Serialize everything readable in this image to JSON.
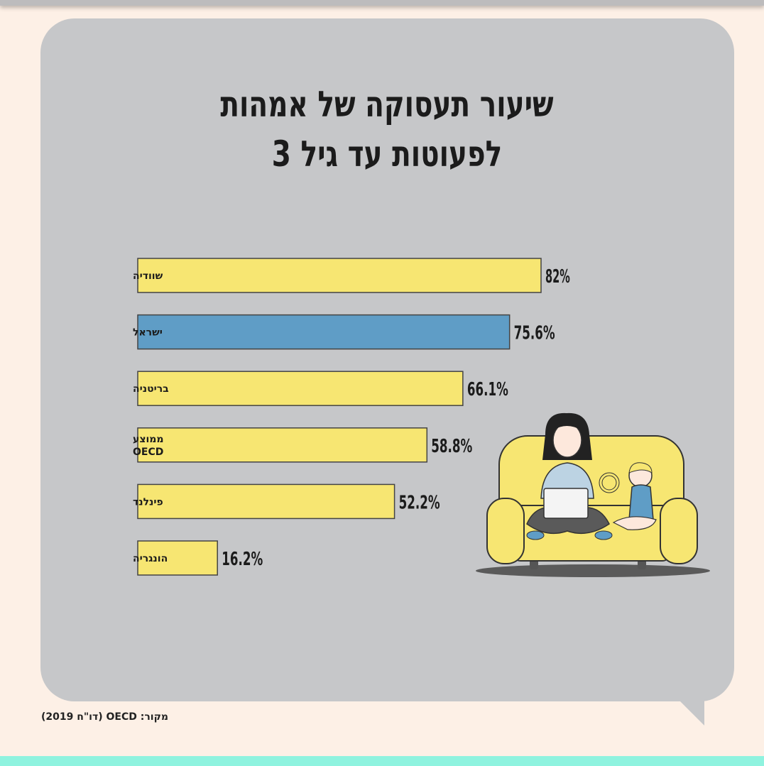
{
  "title": {
    "line1": "שיעור תעסוקה של אמהות",
    "line2": "לפעוטות עד גיל 3"
  },
  "source": "מקור: OECD (דו\"ח 2019)",
  "colors": {
    "background": "#fdf0e6",
    "panel": "#c6c7c9",
    "bar_default": "#f7e672",
    "bar_highlight": "#5f9dc6",
    "accent_strip": "#8ff3df"
  },
  "chart_data": {
    "type": "bar",
    "orientation": "horizontal",
    "categories": [
      "שוודיה",
      "ישראל",
      "בריטניה",
      "ממוצע OECD",
      "פינלנד",
      "הונגריה"
    ],
    "values": [
      82,
      75.6,
      66.1,
      58.8,
      52.2,
      16.2
    ],
    "value_labels": [
      "82%",
      "75.6%",
      "66.1%",
      "58.8%",
      "52.2%",
      "16.2%"
    ],
    "highlight": "ישראל",
    "unit": "%",
    "xlim": [
      0,
      100
    ],
    "grid": false,
    "legend": "none"
  }
}
